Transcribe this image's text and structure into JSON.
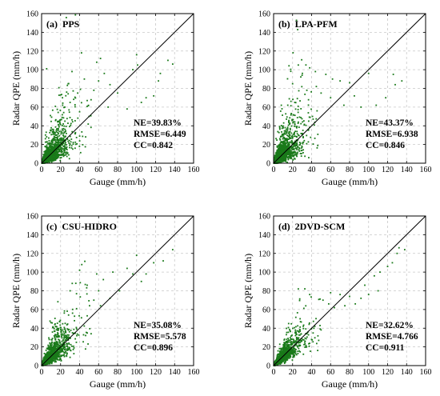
{
  "chart_data": [
    {
      "type": "scatter",
      "panel_label": "(a)  PPS",
      "xlabel": "Gauge (mm/h)",
      "ylabel": "Radar QPE (mm/h)",
      "xlim": [
        0,
        160
      ],
      "ylim": [
        0,
        160
      ],
      "xticks": [
        0,
        20,
        40,
        60,
        80,
        100,
        120,
        140,
        160
      ],
      "yticks": [
        0,
        20,
        40,
        60,
        80,
        100,
        120,
        140,
        160
      ],
      "grid": "dashed",
      "reference_line": "1:1",
      "point_color": "#1a7a1a",
      "stats": [
        "NE=39.83%",
        "RMSE=6.449",
        "CC=0.842"
      ],
      "series": [
        {
          "spread": 0.62,
          "count": 1700,
          "points": [
            [
              42,
              118
            ],
            [
              58,
              108
            ],
            [
              62,
              112
            ],
            [
              100,
              116
            ],
            [
              101,
              105
            ],
            [
              96,
              100
            ],
            [
              133,
              110
            ],
            [
              138,
              106
            ],
            [
              125,
              96
            ],
            [
              123,
              88
            ],
            [
              118,
              72
            ],
            [
              110,
              70
            ],
            [
              66,
              96
            ],
            [
              32,
              98
            ],
            [
              28,
              85
            ],
            [
              45,
              90
            ],
            [
              60,
              88
            ],
            [
              72,
              84
            ],
            [
              80,
              75
            ],
            [
              55,
              78
            ],
            [
              38,
              75
            ],
            [
              22,
              70
            ],
            [
              30,
              65
            ],
            [
              48,
              67
            ],
            [
              70,
              60
            ],
            [
              90,
              58
            ],
            [
              105,
              65
            ],
            [
              40,
              55
            ],
            [
              50,
              50
            ]
          ]
        }
      ]
    },
    {
      "type": "scatter",
      "panel_label": "(b)  LPA-PFM",
      "xlabel": "Gauge (mm/h)",
      "ylabel": "Radar QPE (mm/h)",
      "xlim": [
        0,
        160
      ],
      "ylim": [
        0,
        160
      ],
      "xticks": [
        0,
        20,
        40,
        60,
        80,
        100,
        120,
        140,
        160
      ],
      "yticks": [
        0,
        20,
        40,
        60,
        80,
        100,
        120,
        140,
        160
      ],
      "grid": "dashed",
      "reference_line": "1:1",
      "point_color": "#1a7a1a",
      "stats": [
        "NE=43.37%",
        "RMSE=6.938",
        "CC=0.846"
      ],
      "series": [
        {
          "spread": 0.7,
          "count": 1700,
          "points": [
            [
              26,
              105
            ],
            [
              38,
              102
            ],
            [
              44,
              98
            ],
            [
              30,
              94
            ],
            [
              55,
              95
            ],
            [
              62,
              90
            ],
            [
              70,
              88
            ],
            [
              80,
              86
            ],
            [
              100,
              96
            ],
            [
              126,
              95
            ],
            [
              135,
              88
            ],
            [
              128,
              84
            ],
            [
              118,
              70
            ],
            [
              108,
              62
            ],
            [
              92,
              60
            ],
            [
              74,
              62
            ],
            [
              50,
              75
            ],
            [
              35,
              78
            ],
            [
              20,
              85
            ],
            [
              45,
              82
            ],
            [
              60,
              70
            ],
            [
              85,
              72
            ]
          ]
        }
      ]
    },
    {
      "type": "scatter",
      "panel_label": "(c)  CSU-HIDRO",
      "xlabel": "Gauge (mm/h)",
      "ylabel": "Radar QPE (mm/h)",
      "xlim": [
        0,
        160
      ],
      "ylim": [
        0,
        160
      ],
      "xticks": [
        0,
        20,
        40,
        60,
        80,
        100,
        120,
        140,
        160
      ],
      "yticks": [
        0,
        20,
        40,
        60,
        80,
        100,
        120,
        140,
        160
      ],
      "grid": "dashed",
      "reference_line": "1:1",
      "point_color": "#1a7a1a",
      "stats": [
        "NE=35.08%",
        "RMSE=5.578",
        "CC=0.896"
      ],
      "series": [
        {
          "spread": 0.5,
          "count": 1700,
          "points": [
            [
              40,
              102
            ],
            [
              58,
              98
            ],
            [
              65,
              92
            ],
            [
              75,
              100
            ],
            [
              100,
              118
            ],
            [
              118,
              110
            ],
            [
              128,
              112
            ],
            [
              138,
              124
            ],
            [
              96,
              98
            ],
            [
              90,
              104
            ],
            [
              110,
              98
            ],
            [
              105,
              90
            ],
            [
              82,
              80
            ],
            [
              72,
              72
            ],
            [
              60,
              80
            ],
            [
              48,
              86
            ],
            [
              36,
              88
            ],
            [
              30,
              80
            ],
            [
              55,
              70
            ],
            [
              62,
              64
            ]
          ]
        }
      ]
    },
    {
      "type": "scatter",
      "panel_label": "(d)  2DVD-SCM",
      "xlabel": "Gauge (mm/h)",
      "ylabel": "Radar QPE (mm/h)",
      "xlim": [
        0,
        160
      ],
      "ylim": [
        0,
        160
      ],
      "xticks": [
        0,
        20,
        40,
        60,
        80,
        100,
        120,
        140,
        160
      ],
      "yticks": [
        0,
        20,
        40,
        60,
        80,
        100,
        120,
        140,
        160
      ],
      "grid": "dashed",
      "reference_line": "1:1",
      "point_color": "#1a7a1a",
      "stats": [
        "NE=32.62%",
        "RMSE=4.766",
        "CC=0.911"
      ],
      "series": [
        {
          "spread": 0.4,
          "count": 1700,
          "points": [
            [
              26,
              82
            ],
            [
              38,
              76
            ],
            [
              52,
              70
            ],
            [
              60,
              78
            ],
            [
              70,
              76
            ],
            [
              80,
              74
            ],
            [
              96,
              86
            ],
            [
              106,
              96
            ],
            [
              112,
              100
            ],
            [
              120,
              106
            ],
            [
              125,
              110
            ],
            [
              130,
              120
            ],
            [
              138,
              124
            ],
            [
              132,
              126
            ],
            [
              110,
              80
            ],
            [
              100,
              76
            ],
            [
              92,
              72
            ],
            [
              86,
              66
            ],
            [
              75,
              64
            ],
            [
              64,
              62
            ],
            [
              58,
              66
            ]
          ]
        }
      ]
    }
  ]
}
